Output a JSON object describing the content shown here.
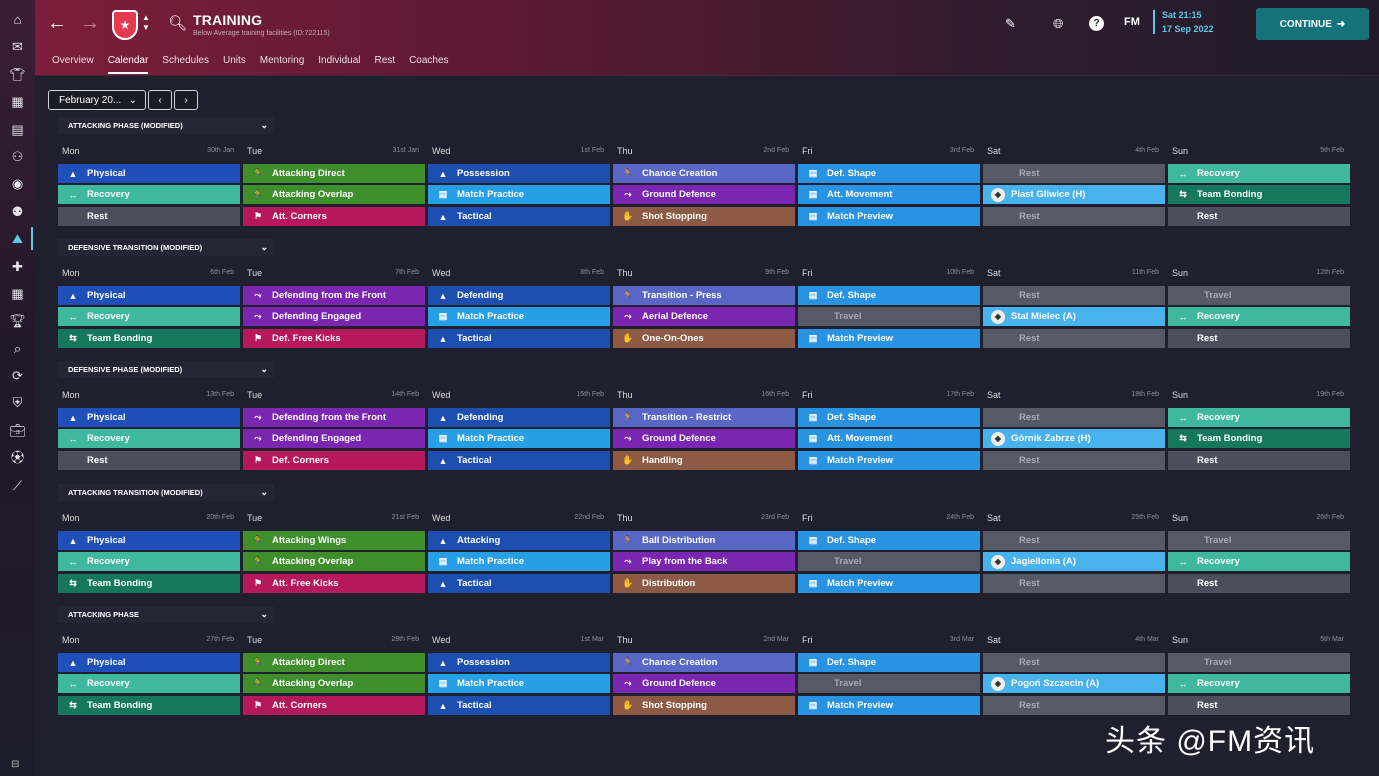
{
  "sidebar": {
    "icons": [
      "home-icon",
      "inbox-icon",
      "squad-icon",
      "tactics-icon",
      "reports-icon",
      "staff-icon",
      "match-icon",
      "team-icon",
      "training-icon",
      "medical-icon",
      "schedule-icon",
      "competitions-icon",
      "scouting-icon",
      "transfers-icon",
      "club-info-icon",
      "finances-icon",
      "dev-center-icon",
      "data-hub-icon"
    ]
  },
  "header": {
    "title": "TRAINING",
    "subtitle": "Below Average training facilities (ID:722115)",
    "date_line1": "Sat 21:15",
    "date_line2": "17 Sep 2022",
    "fm_label": "FM",
    "continue_label": "CONTINUE"
  },
  "tabs": [
    "Overview",
    "Calendar",
    "Schedules",
    "Units",
    "Mentoring",
    "Individual",
    "Rest",
    "Coaches"
  ],
  "active_tab": "Calendar",
  "controls": {
    "month": "February 20..."
  },
  "colors": {
    "accent": "#5ec8e6",
    "header_red": "#7c1e3b",
    "continue": "#15727a"
  },
  "weeks": [
    {
      "title": "ATTACKING PHASE (MODIFIED)",
      "days": [
        [
          "Mon",
          "30th Jan"
        ],
        [
          "Tue",
          "31st Jan"
        ],
        [
          "Wed",
          "1st Feb"
        ],
        [
          "Thu",
          "2nd Feb"
        ],
        [
          "Fri",
          "3rd Feb"
        ],
        [
          "Sat",
          "4th Feb"
        ],
        [
          "Sun",
          "5th Feb"
        ]
      ],
      "cells": [
        [
          [
            "Physical",
            "physical"
          ],
          [
            "Recovery",
            "recovery"
          ],
          [
            "Rest",
            "rest"
          ]
        ],
        [
          [
            "Attacking Direct",
            "attgreen"
          ],
          [
            "Attacking Overlap",
            "attgreen"
          ],
          [
            "Att. Corners",
            "setpiece"
          ]
        ],
        [
          [
            "Possession",
            "tactical"
          ],
          [
            "Match Practice",
            "match"
          ],
          [
            "Tactical",
            "tactical"
          ]
        ],
        [
          [
            "Chance Creation",
            "thu"
          ],
          [
            "Ground Defence",
            "defpurple"
          ],
          [
            "Shot Stopping",
            "gk"
          ]
        ],
        [
          [
            "Def. Shape",
            "fri"
          ],
          [
            "Att. Movement",
            "fri"
          ],
          [
            "Match Preview",
            "fri"
          ]
        ],
        [
          [
            "Rest",
            "greyrest"
          ],
          [
            "Piast Gliwice (H)",
            "fixture"
          ],
          [
            "Rest",
            "greyrest"
          ]
        ],
        [
          [
            "Recovery",
            "recovery"
          ],
          [
            "Team Bonding",
            "bonding"
          ],
          [
            "Rest",
            "rest"
          ]
        ]
      ]
    },
    {
      "title": "DEFENSIVE TRANSITION (MODIFIED)",
      "days": [
        [
          "Mon",
          "6th Feb"
        ],
        [
          "Tue",
          "7th Feb"
        ],
        [
          "Wed",
          "8th Feb"
        ],
        [
          "Thu",
          "9th Feb"
        ],
        [
          "Fri",
          "10th Feb"
        ],
        [
          "Sat",
          "11th Feb"
        ],
        [
          "Sun",
          "12th Feb"
        ]
      ],
      "cells": [
        [
          [
            "Physical",
            "physical"
          ],
          [
            "Recovery",
            "recovery"
          ],
          [
            "Team Bonding",
            "bonding"
          ]
        ],
        [
          [
            "Defending from the Front",
            "defpurple"
          ],
          [
            "Defending Engaged",
            "defpurple"
          ],
          [
            "Def. Free Kicks",
            "setpiece"
          ]
        ],
        [
          [
            "Defending",
            "tactical"
          ],
          [
            "Match Practice",
            "match"
          ],
          [
            "Tactical",
            "tactical"
          ]
        ],
        [
          [
            "Transition - Press",
            "thu"
          ],
          [
            "Aerial Defence",
            "defpurple"
          ],
          [
            "One-On-Ones",
            "gk"
          ]
        ],
        [
          [
            "Def. Shape",
            "fri"
          ],
          [
            "Travel",
            "travel"
          ],
          [
            "Match Preview",
            "fri"
          ]
        ],
        [
          [
            "Rest",
            "greyrest"
          ],
          [
            "Stal Mielec (A)",
            "fixture"
          ],
          [
            "Rest",
            "greyrest"
          ]
        ],
        [
          [
            "Travel",
            "travel"
          ],
          [
            "Recovery",
            "recovery"
          ],
          [
            "Rest",
            "rest"
          ]
        ]
      ]
    },
    {
      "title": "DEFENSIVE PHASE (MODIFIED)",
      "days": [
        [
          "Mon",
          "13th Feb"
        ],
        [
          "Tue",
          "14th Feb"
        ],
        [
          "Wed",
          "15th Feb"
        ],
        [
          "Thu",
          "16th Feb"
        ],
        [
          "Fri",
          "17th Feb"
        ],
        [
          "Sat",
          "18th Feb"
        ],
        [
          "Sun",
          "19th Feb"
        ]
      ],
      "cells": [
        [
          [
            "Physical",
            "physical"
          ],
          [
            "Recovery",
            "recovery"
          ],
          [
            "Rest",
            "rest"
          ]
        ],
        [
          [
            "Defending from the Front",
            "defpurple"
          ],
          [
            "Defending Engaged",
            "defpurple"
          ],
          [
            "Def. Corners",
            "setpiece"
          ]
        ],
        [
          [
            "Defending",
            "tactical"
          ],
          [
            "Match Practice",
            "match"
          ],
          [
            "Tactical",
            "tactical"
          ]
        ],
        [
          [
            "Transition - Restrict",
            "thu"
          ],
          [
            "Ground Defence",
            "defpurple"
          ],
          [
            "Handling",
            "gk"
          ]
        ],
        [
          [
            "Def. Shape",
            "fri"
          ],
          [
            "Att. Movement",
            "fri"
          ],
          [
            "Match Preview",
            "fri"
          ]
        ],
        [
          [
            "Rest",
            "greyrest"
          ],
          [
            "Górnik Zabrze (H)",
            "fixture"
          ],
          [
            "Rest",
            "greyrest"
          ]
        ],
        [
          [
            "Recovery",
            "recovery"
          ],
          [
            "Team Bonding",
            "bonding"
          ],
          [
            "Rest",
            "rest"
          ]
        ]
      ]
    },
    {
      "title": "ATTACKING TRANSITION (MODIFIED)",
      "days": [
        [
          "Mon",
          "20th Feb"
        ],
        [
          "Tue",
          "21st Feb"
        ],
        [
          "Wed",
          "22nd Feb"
        ],
        [
          "Thu",
          "23rd Feb"
        ],
        [
          "Fri",
          "24th Feb"
        ],
        [
          "Sat",
          "25th Feb"
        ],
        [
          "Sun",
          "26th Feb"
        ]
      ],
      "cells": [
        [
          [
            "Physical",
            "physical"
          ],
          [
            "Recovery",
            "recovery"
          ],
          [
            "Team Bonding",
            "bonding"
          ]
        ],
        [
          [
            "Attacking Wings",
            "attgreen"
          ],
          [
            "Attacking Overlap",
            "attgreen"
          ],
          [
            "Att. Free Kicks",
            "setpiece"
          ]
        ],
        [
          [
            "Attacking",
            "tactical"
          ],
          [
            "Match Practice",
            "match"
          ],
          [
            "Tactical",
            "tactical"
          ]
        ],
        [
          [
            "Ball Distribution",
            "thu"
          ],
          [
            "Play from the Back",
            "defpurple"
          ],
          [
            "Distribution",
            "gk"
          ]
        ],
        [
          [
            "Def. Shape",
            "fri"
          ],
          [
            "Travel",
            "travel"
          ],
          [
            "Match Preview",
            "fri"
          ]
        ],
        [
          [
            "Rest",
            "greyrest"
          ],
          [
            "Jagiellonia (A)",
            "fixture"
          ],
          [
            "Rest",
            "greyrest"
          ]
        ],
        [
          [
            "Travel",
            "travel"
          ],
          [
            "Recovery",
            "recovery"
          ],
          [
            "Rest",
            "rest"
          ]
        ]
      ]
    },
    {
      "title": "ATTACKING PHASE",
      "days": [
        [
          "Mon",
          "27th Feb"
        ],
        [
          "Tue",
          "28th Feb"
        ],
        [
          "Wed",
          "1st Mar"
        ],
        [
          "Thu",
          "2nd Mar"
        ],
        [
          "Fri",
          "3rd Mar"
        ],
        [
          "Sat",
          "4th Mar"
        ],
        [
          "Sun",
          "5th Mar"
        ]
      ],
      "cells": [
        [
          [
            "Physical",
            "physical"
          ],
          [
            "Recovery",
            "recovery"
          ],
          [
            "Team Bonding",
            "bonding"
          ]
        ],
        [
          [
            "Attacking Direct",
            "attgreen"
          ],
          [
            "Attacking Overlap",
            "attgreen"
          ],
          [
            "Att. Corners",
            "setpiece"
          ]
        ],
        [
          [
            "Possession",
            "tactical"
          ],
          [
            "Match Practice",
            "match"
          ],
          [
            "Tactical",
            "tactical"
          ]
        ],
        [
          [
            "Chance Creation",
            "thu"
          ],
          [
            "Ground Defence",
            "defpurple"
          ],
          [
            "Shot Stopping",
            "gk"
          ]
        ],
        [
          [
            "Def. Shape",
            "fri"
          ],
          [
            "Travel",
            "travel"
          ],
          [
            "Match Preview",
            "fri"
          ]
        ],
        [
          [
            "Rest",
            "greyrest"
          ],
          [
            "Pogoń Szczecin (A)",
            "fixture"
          ],
          [
            "Rest",
            "greyrest"
          ]
        ],
        [
          [
            "Travel",
            "travel"
          ],
          [
            "Recovery",
            "recovery"
          ],
          [
            "Rest",
            "rest"
          ]
        ]
      ]
    }
  ],
  "cell_styles": {
    "physical": {
      "bg": "#1f4fb8",
      "icon": "▲",
      "iconname": "physical-icon"
    },
    "recovery": {
      "bg": "#3fb8a0",
      "icon": "↔",
      "iconname": "recovery-icon"
    },
    "rest": {
      "bg": "#4d4e5c",
      "icon": "",
      "iconname": ""
    },
    "bonding": {
      "bg": "#14775e",
      "icon": "⇆",
      "iconname": "bonding-icon"
    },
    "attgreen": {
      "bg": "#3f8e2c",
      "icon": "🏃",
      "iconname": "running-icon"
    },
    "setpiece": {
      "bg": "#b5185b",
      "icon": "⚑",
      "iconname": "set-piece-icon"
    },
    "defpurple": {
      "bg": "#7a26b0",
      "icon": "⤳",
      "iconname": "tackle-icon"
    },
    "tactical": {
      "bg": "#1d4fb0",
      "icon": "▲",
      "iconname": "tactics-icon"
    },
    "match": {
      "bg": "#279fe6",
      "icon": "▤",
      "iconname": "match-practice-icon"
    },
    "thu": {
      "bg": "#5867c6",
      "icon": "🏃",
      "iconname": "transition-icon"
    },
    "gk": {
      "bg": "#8d5a45",
      "icon": "✋",
      "iconname": "goalkeeping-icon"
    },
    "fri": {
      "bg": "#2793e2",
      "icon": "▤",
      "iconname": "match-prep-icon"
    },
    "greyrest": {
      "bg": "#575967",
      "icon": "",
      "iconname": "",
      "muted": true
    },
    "travel": {
      "bg": "#575967",
      "icon": "",
      "iconname": "",
      "muted": true
    },
    "fixture": {
      "bg": "#48b2ec",
      "icon": "◆",
      "iconname": "opponent-crest-icon"
    }
  },
  "watermark": "头条 @FM资讯"
}
